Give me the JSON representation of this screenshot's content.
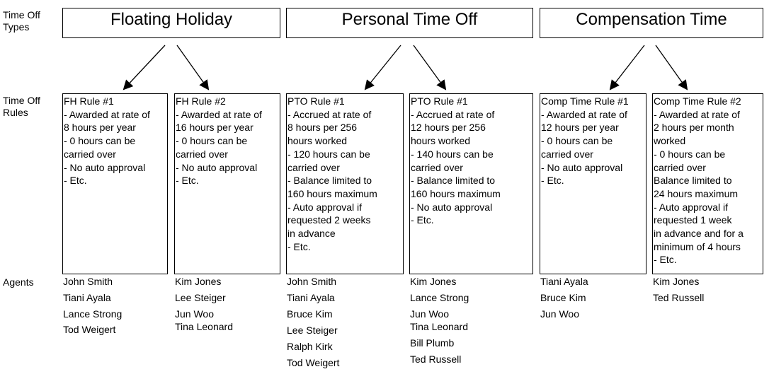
{
  "row_labels": {
    "types": [
      "Time Off",
      "Types"
    ],
    "rules": [
      "Time Off",
      "Rules"
    ],
    "agents": "Agents"
  },
  "types": [
    {
      "name": "Floating Holiday"
    },
    {
      "name": "Personal Time Off"
    },
    {
      "name": "Compensation Time"
    }
  ],
  "rules": [
    {
      "lines": [
        "FH Rule #1",
        "- Awarded at rate of",
        "8 hours per year",
        "- 0 hours can be",
        "carried over",
        "- No auto approval",
        "- Etc."
      ]
    },
    {
      "lines": [
        "FH Rule #2",
        "- Awarded at rate of",
        "16 hours per year",
        "- 0 hours can be",
        "carried over",
        "- No auto approval",
        "- Etc."
      ]
    },
    {
      "lines": [
        "PTO Rule #1",
        "- Accrued at rate of",
        "8 hours per 256",
        "hours worked",
        "- 120 hours can be",
        "carried over",
        "- Balance limited to",
        "160 hours maximum",
        "- Auto approval if",
        "requested 2 weeks",
        "in advance",
        "- Etc."
      ]
    },
    {
      "lines": [
        "PTO Rule #1",
        "- Accrued at rate of",
        "12 hours per 256",
        "hours worked",
        "- 140 hours can be",
        "carried over",
        "- Balance limited to",
        "160 hours maximum",
        "- No auto approval",
        "- Etc."
      ]
    },
    {
      "lines": [
        "Comp Time Rule #1",
        "- Awarded at rate of",
        "12 hours per year",
        "- 0 hours can be",
        "carried over",
        "- No auto approval",
        "- Etc."
      ]
    },
    {
      "lines": [
        "Comp Time Rule #2",
        "- Awarded at rate of",
        "2 hours per month",
        "worked",
        "- 0 hours can be",
        "carried over",
        "Balance limited to",
        "24 hours maximum",
        "- Auto approval if",
        "requested 1 week",
        "in advance and for a",
        "minimum of 4 hours",
        "- Etc."
      ]
    }
  ],
  "agents": [
    [
      "John Smith",
      "Tiani Ayala",
      "Lance Strong",
      "Tod Weigert"
    ],
    [
      "Kim Jones",
      "Lee Steiger",
      "Jun Woo",
      "Tina Leonard"
    ],
    [
      "John Smith",
      "Tiani Ayala",
      "Bruce Kim",
      "Lee Steiger",
      "Ralph Kirk",
      "Tod Weigert"
    ],
    [
      "Kim Jones",
      "Lance Strong",
      "Jun Woo",
      "Tina Leonard",
      "Bill Plumb",
      "Ted Russell"
    ],
    [
      "Tiani Ayala",
      "Bruce Kim",
      "Jun Woo"
    ],
    [
      "Kim Jones",
      "Ted Russell"
    ]
  ]
}
